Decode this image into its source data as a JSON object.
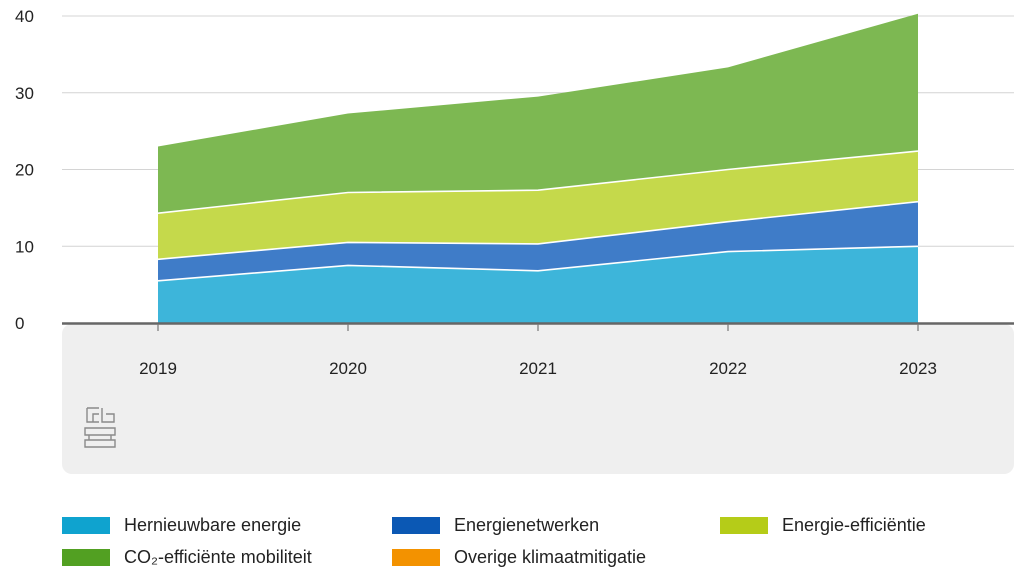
{
  "chart_data": {
    "type": "area",
    "stacked": true,
    "categories": [
      "2019",
      "2020",
      "2021",
      "2022",
      "2023"
    ],
    "series": [
      {
        "name": "Hernieuwbare energie",
        "color": "#3DB5DA",
        "values": [
          5.5,
          7.5,
          6.8,
          9.3,
          10.0
        ]
      },
      {
        "name": "Energienetwerken",
        "color": "#3F7CC8",
        "values": [
          2.8,
          3.0,
          3.5,
          3.9,
          5.8
        ]
      },
      {
        "name": "Energie-efficiëntie",
        "color": "#C5D94B",
        "values": [
          6.0,
          6.5,
          7.0,
          6.8,
          6.6
        ]
      },
      {
        "name": "CO₂-efficiënte mobiliteit",
        "color": "#7DB852",
        "values": [
          8.7,
          10.3,
          12.2,
          13.3,
          17.9
        ]
      },
      {
        "name": "Overige klimaatmitigatie",
        "color": "#F39200",
        "values": [
          0,
          0,
          0,
          0,
          0
        ]
      }
    ],
    "yticks": [
      "0",
      "10",
      "20",
      "30",
      "40"
    ],
    "ylim": [
      0,
      40
    ],
    "title": "",
    "xlabel": "",
    "ylabel": "",
    "grid": true,
    "legend_position": "bottom"
  },
  "logo": {
    "name": "cbs"
  },
  "legend_swatches": {
    "Hernieuwbare energie": "#0FA3CF",
    "Energienetwerken": "#0B58B4",
    "Energie-efficiëntie": "#B5CC18",
    "CO₂-efficiënte mobiliteit": "#52A022",
    "Overige klimaatmitigatie": "#F39200"
  }
}
